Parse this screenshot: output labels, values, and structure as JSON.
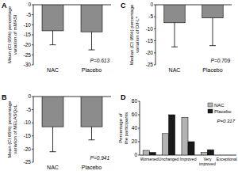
{
  "chart_data": [
    {
      "type": "bar",
      "title": "A",
      "y_label": "Mean (CI 95%) percentage variation of mMASI",
      "categories": [
        "NAC",
        "Placebo"
      ],
      "values": [
        -13,
        -13.5
      ],
      "errors": [
        7,
        9
      ],
      "color": "#8c8c8c",
      "ylim": [
        -30,
        0
      ],
      "yticks": [
        -30,
        -25,
        -20,
        -15,
        -10,
        -5,
        0
      ],
      "annotation": "P=0.613"
    },
    {
      "type": "bar",
      "title": "B",
      "y_label": "Mean (CI 95%) percentage variation of MELASQoL",
      "categories": [
        "NAC",
        "Placebo"
      ],
      "values": [
        -11.5,
        -11.5
      ],
      "errors": [
        9.5,
        5
      ],
      "color": "#8c8c8c",
      "ylim": [
        -25,
        0
      ],
      "yticks": [
        -25,
        -20,
        -15,
        -10,
        -5,
        0
      ],
      "annotation": "P=0.941"
    },
    {
      "type": "bar",
      "title": "C",
      "y_label": "Median (CI 95%) percentage variation of Dif-L*",
      "categories": [
        "NAC",
        "Placebo"
      ],
      "values": [
        -7.5,
        -5.5
      ],
      "errors": [
        10,
        11.5
      ],
      "color": "#8c8c8c",
      "ylim": [
        -25,
        0
      ],
      "yticks": [
        -25,
        -20,
        -15,
        -10,
        -5,
        0
      ],
      "annotation": "P=0.709"
    },
    {
      "type": "bar",
      "title": "D",
      "y_label": "Percentage of the participants",
      "categories": [
        "Worsened",
        "Unchanged",
        "Improved",
        "Very improved",
        "Exceptional"
      ],
      "series": [
        {
          "name": "NAC",
          "color": "#b3b3b3",
          "values": [
            7,
            32,
            56,
            4,
            0
          ]
        },
        {
          "name": "Placebo",
          "color": "#1a1a1a",
          "values": [
            4,
            60,
            20,
            8,
            0
          ]
        }
      ],
      "ylim": [
        0,
        80
      ],
      "yticks": [
        0,
        20,
        40,
        60,
        80
      ],
      "legend": "upper right",
      "annotation": "P=0.317"
    }
  ]
}
